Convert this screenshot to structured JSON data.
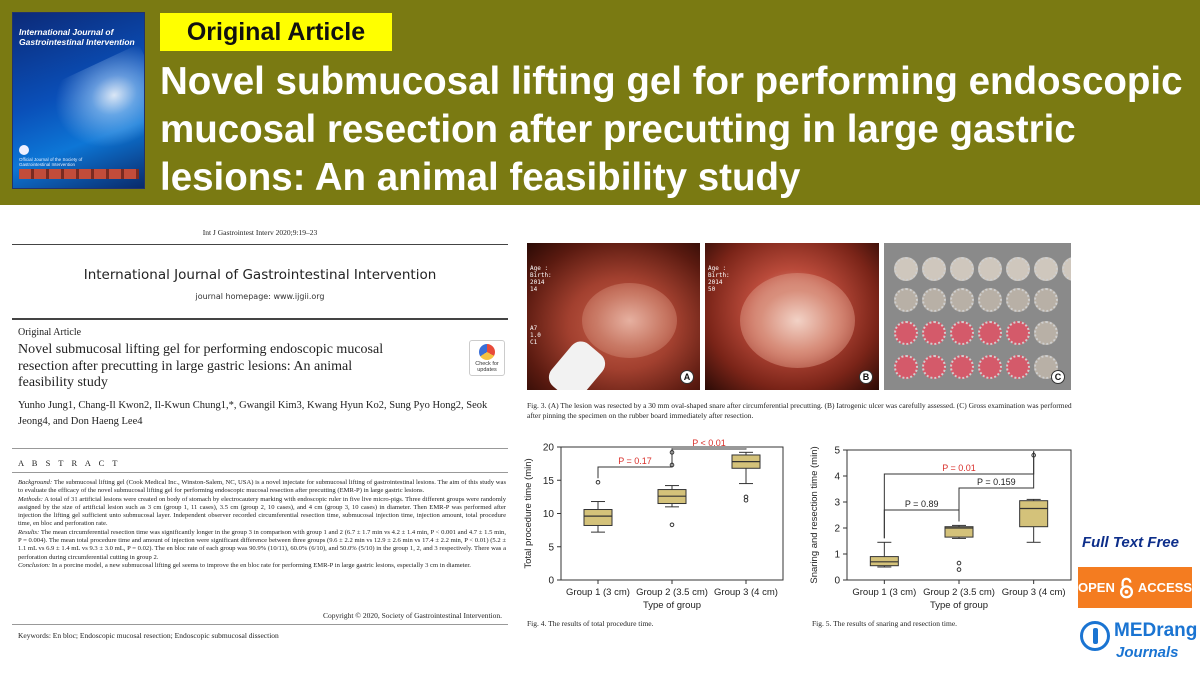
{
  "banner": {
    "journal_cover": {
      "title": "International Journal of Gastrointestinal Intervention",
      "footer": "Official Journal of the Society of Gastrointestinal Intervention"
    },
    "tag": "Original Article",
    "headline": "Novel submucosal lifting gel for performing endoscopic mucosal resection after precutting in large gastric lesions: An animal feasibility study"
  },
  "paper": {
    "citation": "Int J Gastrointest Interv 2020;9:19–23",
    "journal_name": "International Journal of Gastrointestinal Intervention",
    "homepage": "journal homepage: www.ijgii.org",
    "article_type": "Original Article",
    "title": "Novel submucosal lifting gel for performing endoscopic mucosal resection after precutting in large gastric lesions: An animal feasibility study",
    "check_updates": "Check for updates",
    "authors": "Yunho Jung1, Chang-Il Kwon2, Il-Kwun Chung1,*, Gwangil Kim3, Kwang Hyun Ko2, Sung Pyo Hong2, Seok Jeong4, and Don Haeng Lee4",
    "abstract_heading": "A B S T R A C T",
    "abstract": {
      "background_label": "Background:",
      "background": "The submucosal lifting gel (Cook Medical Inc., Winston-Salem, NC, USA) is a novel injectate for submucosal lifting of gastrointestinal lesions. The aim of this study was to evaluate the efficacy of the novel submucosal lifting gel for performing endoscopic mucosal resection after precutting (EMR-P) in large gastric lesions.",
      "methods_label": "Methods:",
      "methods": "A total of 31 artificial lesions were created on body of stomach by electrocautery marking with endoscopic ruler in five live micro-pigs. Three different groups were randomly assigned by the size of artificial lesion such as 3 cm (group 1, 11 cases), 3.5 cm (group 2, 10 cases), and 4 cm (group 3, 10 cases) in diameter. Then EMR-P was performed after injection the lifting gel sufficient unto submucosal layer. Independent observer recorded circumferential resection time, submucosal injection time, injection amount, total procedure time, en bloc and perforation rate.",
      "results_label": "Results:",
      "results": "The mean circumferential resection time was significantly longer in the group 3 in comparison with group 1 and 2 (6.7 ± 1.7 min vs 4.2 ± 1.4 min, P < 0.001 and 4.7 ± 1.5 min, P = 0.004). The mean total procedure time and amount of injection were significant difference between three groups (9.6 ± 2.2 min vs 12.9 ± 2.6 min vs 17.4 ± 2.2 min, P < 0.01) (5.2 ± 1.1 mL vs 6.9 ± 1.4 mL vs 9.3 ± 3.0 mL, P = 0.02). The en bloc rate of each group was 90.9% (10/11), 60.0% (6/10), and 50.0% (5/10) in the group 1, 2, and 3 respectively. There was a perforation during circumferential cutting in group 2.",
      "conclusion_label": "Conclusion:",
      "conclusion": "In a porcine model, a new submucosal lifting gel seems to improve the en bloc rate for performing EMR-P in large gastric lesions, especially 3 cm in diameter."
    },
    "copyright": "Copyright © 2020, Society of Gastrointestinal Intervention.",
    "keywords": "Keywords: En bloc; Endoscopic mucosal resection; Endoscopic submucosal dissection"
  },
  "figure3": {
    "photo_a_overlay": "Age :\nBirth:\n2014\n14",
    "photo_a_side": "A7\n1.0\nC1",
    "photo_b_overlay": "Age :\nBirth:\n2014\n50",
    "label_a": "A",
    "label_b": "B",
    "label_c": "C",
    "caption": "Fig. 3. (A) The lesion was resected by a 30 mm oval-shaped snare after circumferential precutting. (B) Iatrogenic ulcer was carefully assessed. (C) Gross examination was performed after pinning the specimen on the rubber board immediately after resection."
  },
  "chart_data": [
    {
      "type": "box",
      "ylabel": "Total procedure time (min)",
      "xlabel": "Type of group",
      "categories": [
        "Group 1 (3 cm)",
        "Group 2 (3.5 cm)",
        "Group 3 (4 cm)"
      ],
      "ylim": [
        0,
        20
      ],
      "yticks": [
        0,
        5,
        10,
        15,
        20
      ],
      "boxes": [
        {
          "min": 7.2,
          "q1": 8.2,
          "median": 9.6,
          "q3": 10.6,
          "max": 11.8,
          "outliers": [
            14.7
          ]
        },
        {
          "min": 11.0,
          "q1": 11.5,
          "median": 12.6,
          "q3": 13.6,
          "max": 14.2,
          "outliers": [
            8.3,
            17.3,
            19.2
          ]
        },
        {
          "min": 14.5,
          "q1": 16.8,
          "median": 17.8,
          "q3": 18.8,
          "max": 19.2,
          "outliers": [
            12.0,
            12.5
          ]
        }
      ],
      "annotations": [
        {
          "text": "P = 0.17",
          "from": 0,
          "to": 1
        },
        {
          "text": "P < 0.01",
          "from": 1,
          "to": 2
        }
      ],
      "caption": "Fig. 4. The results of total procedure time."
    },
    {
      "type": "box",
      "ylabel": "Snaring and resection time (min)",
      "xlabel": "Type of group",
      "categories": [
        "Group 1 (3 cm)",
        "Group 2 (3.5 cm)",
        "Group 3 (4 cm)"
      ],
      "ylim": [
        0,
        5
      ],
      "yticks": [
        0,
        1,
        2,
        3,
        4,
        5
      ],
      "boxes": [
        {
          "min": 0.5,
          "q1": 0.55,
          "median": 0.7,
          "q3": 0.9,
          "max": 1.45,
          "outliers": []
        },
        {
          "min": 1.6,
          "q1": 1.65,
          "median": 2.0,
          "q3": 2.05,
          "max": 2.1,
          "outliers": [
            0.4,
            0.65
          ]
        },
        {
          "min": 1.45,
          "q1": 2.05,
          "median": 2.75,
          "q3": 3.05,
          "max": 3.1,
          "outliers": [
            4.8
          ]
        }
      ],
      "annotations": [
        {
          "text": "P = 0.89",
          "from": 0,
          "to": 1
        },
        {
          "text": "P = 0.159",
          "from": 1,
          "to": 2
        },
        {
          "text": "P = 0.01",
          "from": 0,
          "to": 2
        }
      ],
      "caption": "Fig. 5. The results of snaring and resection time."
    }
  ],
  "side": {
    "full_text": "Full Text Free",
    "open_label": "OPEN",
    "access_label": "ACCESS",
    "publisher": "MEDrang",
    "publisher_sub": "Journals"
  },
  "colors": {
    "banner": "#7a7a12",
    "tag": "#ffff00",
    "box_fill": "#d4c27a",
    "annotation_red": "#d9302b",
    "open_access": "#f47c20",
    "publisher_blue": "#1a74d2"
  }
}
